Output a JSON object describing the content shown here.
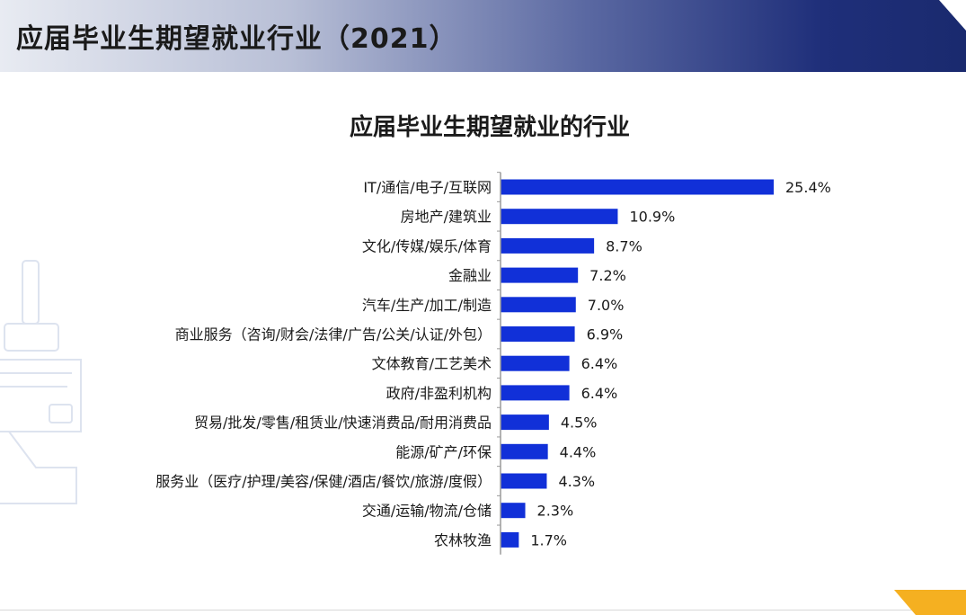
{
  "header": {
    "title": "应届毕业生期望就业行业（2021）"
  },
  "colors": {
    "bar": "#1130d8",
    "header_dark": "#1a2a6e",
    "accent": "#f5b021"
  },
  "chart_data": {
    "type": "bar",
    "orientation": "horizontal",
    "title": "应届毕业生期望就业的行业",
    "categories": [
      "IT/通信/电子/互联网",
      "房地产/建筑业",
      "文化/传媒/娱乐/体育",
      "金融业",
      "汽车/生产/加工/制造",
      "商业服务（咨询/财会/法律/广告/公关/认证/外包）",
      "文体教育/工艺美术",
      "政府/非盈利机构",
      "贸易/批发/零售/租赁业/快速消费品/耐用消费品",
      "能源/矿产/环保",
      "服务业（医疗/护理/美容/保健/酒店/餐饮/旅游/度假）",
      "交通/运输/物流/仓储",
      "农林牧渔"
    ],
    "values": [
      25.4,
      10.9,
      8.7,
      7.2,
      7.0,
      6.9,
      6.4,
      6.4,
      4.5,
      4.4,
      4.3,
      2.3,
      1.7
    ],
    "value_labels": [
      "25.4%",
      "10.9%",
      "8.7%",
      "7.2%",
      "7.0%",
      "6.9%",
      "6.4%",
      "6.4%",
      "4.5%",
      "4.4%",
      "4.3%",
      "2.3%",
      "1.7%"
    ],
    "xlabel": "",
    "ylabel": "",
    "xlim": [
      0,
      25.4
    ],
    "grid": false,
    "legend": "none"
  }
}
